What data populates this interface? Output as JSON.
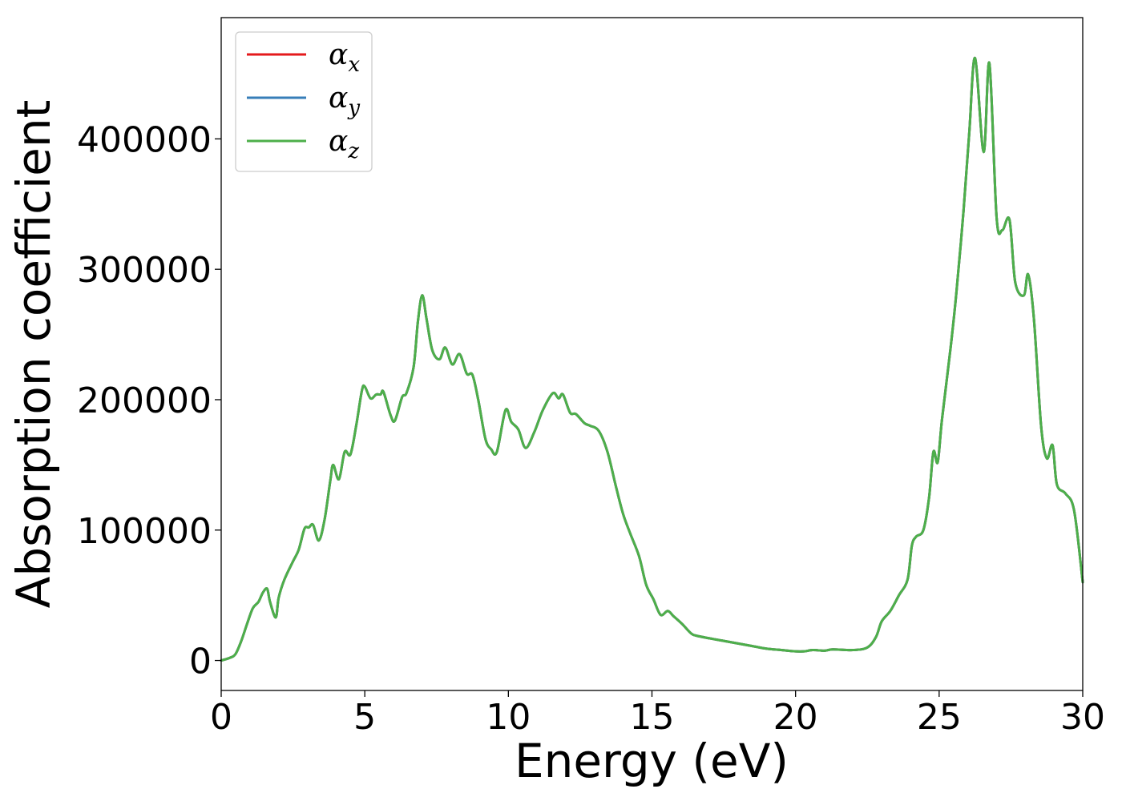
{
  "chart_data": {
    "type": "line",
    "xlabel": "Energy (eV)",
    "ylabel": "Absorption coefficient",
    "xlim": [
      0,
      30
    ],
    "ylim": [
      -23000,
      493000
    ],
    "xticks": [
      "0",
      "5",
      "10",
      "15",
      "20",
      "25",
      "30"
    ],
    "yticks": [
      "0",
      "100000",
      "200000",
      "300000",
      "400000"
    ],
    "legend_position": "upper-left",
    "grid": false,
    "series": [
      {
        "name": "α_x",
        "symbol": "α",
        "subscript": "x",
        "color": "#e41a1c",
        "x": [
          0,
          0.3,
          0.5,
          0.7,
          0.9,
          1.1,
          1.3,
          1.45,
          1.6,
          1.7,
          1.9,
          2.0,
          2.2,
          2.5,
          2.7,
          2.9,
          3.05,
          3.2,
          3.4,
          3.6,
          3.8,
          3.9,
          4.1,
          4.3,
          4.5,
          4.7,
          4.9,
          5.0,
          5.2,
          5.4,
          5.55,
          5.65,
          5.9,
          6.05,
          6.3,
          6.45,
          6.7,
          6.85,
          7.0,
          7.15,
          7.35,
          7.6,
          7.8,
          8.05,
          8.3,
          8.55,
          8.75,
          8.95,
          9.2,
          9.4,
          9.6,
          9.9,
          10.1,
          10.35,
          10.6,
          10.9,
          11.2,
          11.55,
          11.75,
          11.9,
          12.15,
          12.35,
          12.65,
          12.85,
          13.15,
          13.45,
          13.75,
          14.0,
          14.25,
          14.55,
          14.8,
          15.05,
          15.3,
          15.55,
          15.75,
          16.05,
          16.35,
          16.55,
          17.0,
          17.5,
          18.0,
          18.5,
          19.0,
          19.5,
          20.0,
          20.3,
          20.6,
          21.0,
          21.3,
          22.0,
          22.5,
          22.8,
          23.0,
          23.3,
          23.6,
          23.9,
          24.05,
          24.2,
          24.45,
          24.65,
          24.8,
          24.95,
          25.1,
          25.4,
          25.6,
          25.85,
          26.05,
          26.25,
          26.55,
          26.75,
          27.0,
          27.2,
          27.45,
          27.65,
          27.95,
          28.1,
          28.3,
          28.55,
          28.75,
          28.95,
          29.1,
          29.4,
          29.7,
          30.0
        ],
        "values": [
          0,
          2000,
          5000,
          15000,
          28000,
          40000,
          45000,
          52000,
          55000,
          45000,
          33000,
          48000,
          62000,
          76000,
          85000,
          101000,
          102000,
          104000,
          92000,
          108000,
          138000,
          150000,
          139000,
          160000,
          158000,
          180000,
          207000,
          210000,
          201000,
          204000,
          204000,
          206000,
          188000,
          184000,
          202000,
          205000,
          225000,
          260000,
          280000,
          262000,
          238000,
          231000,
          240000,
          227000,
          235000,
          220000,
          219000,
          200000,
          170000,
          162000,
          160000,
          192000,
          183000,
          177000,
          163000,
          175000,
          192000,
          205000,
          201000,
          204000,
          190000,
          189000,
          182000,
          180000,
          176000,
          160000,
          133000,
          112000,
          97000,
          80000,
          58000,
          47000,
          35000,
          38000,
          34000,
          28000,
          21000,
          19000,
          17000,
          15000,
          13000,
          11000,
          9000,
          8000,
          7000,
          7000,
          8000,
          7500,
          8500,
          8000,
          10000,
          18000,
          30000,
          38000,
          50000,
          62000,
          88000,
          95000,
          100000,
          125000,
          160000,
          152000,
          185000,
          240000,
          282000,
          345000,
          405000,
          462000,
          390000,
          458000,
          340000,
          330000,
          338000,
          290000,
          280000,
          296000,
          262000,
          180000,
          155000,
          165000,
          135000,
          128000,
          115000,
          60000
        ]
      },
      {
        "name": "α_y",
        "symbol": "α",
        "subscript": "y",
        "color": "#377eb8",
        "x": [
          0,
          0.3,
          0.5,
          0.7,
          0.9,
          1.1,
          1.3,
          1.45,
          1.6,
          1.7,
          1.9,
          2.0,
          2.2,
          2.5,
          2.7,
          2.9,
          3.05,
          3.2,
          3.4,
          3.6,
          3.8,
          3.9,
          4.1,
          4.3,
          4.5,
          4.7,
          4.9,
          5.0,
          5.2,
          5.4,
          5.55,
          5.65,
          5.9,
          6.05,
          6.3,
          6.45,
          6.7,
          6.85,
          7.0,
          7.15,
          7.35,
          7.6,
          7.8,
          8.05,
          8.3,
          8.55,
          8.75,
          8.95,
          9.2,
          9.4,
          9.6,
          9.9,
          10.1,
          10.35,
          10.6,
          10.9,
          11.2,
          11.55,
          11.75,
          11.9,
          12.15,
          12.35,
          12.65,
          12.85,
          13.15,
          13.45,
          13.75,
          14.0,
          14.25,
          14.55,
          14.8,
          15.05,
          15.3,
          15.55,
          15.75,
          16.05,
          16.35,
          16.55,
          17.0,
          17.5,
          18.0,
          18.5,
          19.0,
          19.5,
          20.0,
          20.3,
          20.6,
          21.0,
          21.3,
          22.0,
          22.5,
          22.8,
          23.0,
          23.3,
          23.6,
          23.9,
          24.05,
          24.2,
          24.45,
          24.65,
          24.8,
          24.95,
          25.1,
          25.4,
          25.6,
          25.85,
          26.05,
          26.25,
          26.55,
          26.75,
          27.0,
          27.2,
          27.45,
          27.65,
          27.95,
          28.1,
          28.3,
          28.55,
          28.75,
          28.95,
          29.1,
          29.4,
          29.7,
          30.0
        ],
        "values": [
          0,
          2000,
          5000,
          15000,
          28000,
          40000,
          45000,
          52000,
          55000,
          45000,
          33000,
          48000,
          62000,
          76000,
          85000,
          101000,
          102000,
          104000,
          92000,
          108000,
          138000,
          150000,
          139000,
          160000,
          158000,
          180000,
          207000,
          210000,
          201000,
          204000,
          204000,
          206000,
          188000,
          184000,
          202000,
          205000,
          225000,
          260000,
          280000,
          262000,
          238000,
          231000,
          240000,
          227000,
          235000,
          220000,
          219000,
          200000,
          170000,
          162000,
          160000,
          192000,
          183000,
          177000,
          163000,
          175000,
          192000,
          205000,
          201000,
          204000,
          190000,
          189000,
          182000,
          180000,
          176000,
          160000,
          133000,
          112000,
          97000,
          80000,
          58000,
          47000,
          35000,
          38000,
          34000,
          28000,
          21000,
          19000,
          17000,
          15000,
          13000,
          11000,
          9000,
          8000,
          7000,
          7000,
          8000,
          7500,
          8500,
          8000,
          10000,
          18000,
          30000,
          38000,
          50000,
          62000,
          88000,
          95000,
          100000,
          125000,
          160000,
          152000,
          185000,
          240000,
          282000,
          345000,
          405000,
          462000,
          390000,
          458000,
          340000,
          330000,
          338000,
          290000,
          280000,
          296000,
          262000,
          180000,
          155000,
          165000,
          135000,
          128000,
          115000,
          60000
        ]
      },
      {
        "name": "α_z",
        "symbol": "α",
        "subscript": "z",
        "color": "#4daf4a",
        "x": [
          0,
          0.3,
          0.5,
          0.7,
          0.9,
          1.1,
          1.3,
          1.45,
          1.6,
          1.7,
          1.9,
          2.0,
          2.2,
          2.5,
          2.7,
          2.9,
          3.05,
          3.2,
          3.4,
          3.6,
          3.8,
          3.9,
          4.1,
          4.3,
          4.5,
          4.7,
          4.9,
          5.0,
          5.2,
          5.4,
          5.55,
          5.65,
          5.9,
          6.05,
          6.3,
          6.45,
          6.7,
          6.85,
          7.0,
          7.15,
          7.35,
          7.6,
          7.8,
          8.05,
          8.3,
          8.55,
          8.75,
          8.95,
          9.2,
          9.4,
          9.6,
          9.9,
          10.1,
          10.35,
          10.6,
          10.9,
          11.2,
          11.55,
          11.75,
          11.9,
          12.15,
          12.35,
          12.65,
          12.85,
          13.15,
          13.45,
          13.75,
          14.0,
          14.25,
          14.55,
          14.8,
          15.05,
          15.3,
          15.55,
          15.75,
          16.05,
          16.35,
          16.55,
          17.0,
          17.5,
          18.0,
          18.5,
          19.0,
          19.5,
          20.0,
          20.3,
          20.6,
          21.0,
          21.3,
          22.0,
          22.5,
          22.8,
          23.0,
          23.3,
          23.6,
          23.9,
          24.05,
          24.2,
          24.45,
          24.65,
          24.8,
          24.95,
          25.1,
          25.4,
          25.6,
          25.85,
          26.05,
          26.25,
          26.55,
          26.75,
          27.0,
          27.2,
          27.45,
          27.65,
          27.95,
          28.1,
          28.3,
          28.55,
          28.75,
          28.95,
          29.1,
          29.4,
          29.7,
          30.0
        ],
        "values": [
          0,
          2000,
          5000,
          15000,
          28000,
          40000,
          45000,
          52000,
          55000,
          45000,
          33000,
          48000,
          62000,
          76000,
          85000,
          101000,
          102000,
          104000,
          92000,
          108000,
          138000,
          150000,
          139000,
          160000,
          158000,
          180000,
          207000,
          210000,
          201000,
          204000,
          204000,
          206000,
          188000,
          184000,
          202000,
          205000,
          225000,
          260000,
          280000,
          262000,
          238000,
          231000,
          240000,
          227000,
          235000,
          220000,
          219000,
          200000,
          170000,
          162000,
          160000,
          192000,
          183000,
          177000,
          163000,
          175000,
          192000,
          205000,
          201000,
          204000,
          190000,
          189000,
          182000,
          180000,
          176000,
          160000,
          133000,
          112000,
          97000,
          80000,
          58000,
          47000,
          35000,
          38000,
          34000,
          28000,
          21000,
          19000,
          17000,
          15000,
          13000,
          11000,
          9000,
          8000,
          7000,
          7000,
          8000,
          7500,
          8500,
          8000,
          10000,
          18000,
          30000,
          38000,
          50000,
          62000,
          88000,
          95000,
          100000,
          125000,
          160000,
          152000,
          185000,
          240000,
          282000,
          345000,
          405000,
          462000,
          390000,
          458000,
          340000,
          330000,
          338000,
          290000,
          280000,
          296000,
          262000,
          180000,
          155000,
          165000,
          135000,
          128000,
          115000,
          60000
        ]
      }
    ]
  }
}
